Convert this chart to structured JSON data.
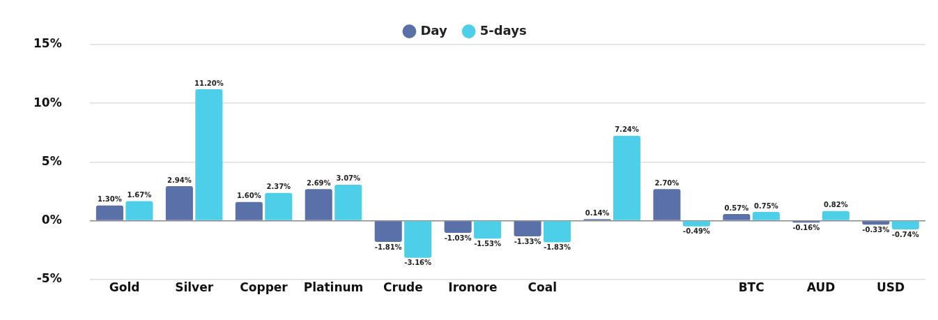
{
  "chart_data": {
    "type": "bar",
    "categories": [
      "Gold",
      "Silver",
      "Copper",
      "Platinum",
      "Crude",
      "Ironore",
      "Coal",
      null,
      null,
      "BTC",
      "AUD",
      "USD"
    ],
    "series": [
      {
        "name": "Day",
        "color": "#5a70a9",
        "values": [
          1.3,
          2.94,
          1.6,
          2.69,
          -1.81,
          -1.03,
          -1.33,
          0.14,
          2.7,
          0.57,
          -0.16,
          -0.33
        ],
        "value_labels": [
          "1.30%",
          "2.94%",
          "1.60%",
          "2.69%",
          "-1.81%",
          "-1.03%",
          "-1.33%",
          "0.14%",
          "2.70%",
          "0.57%",
          "-0.16%",
          "-0.33%"
        ]
      },
      {
        "name": "5-days",
        "color": "#4dcfe9",
        "values": [
          1.67,
          11.2,
          2.37,
          3.07,
          -3.16,
          -1.53,
          -1.83,
          7.24,
          -0.49,
          0.75,
          0.82,
          -0.74
        ],
        "value_labels": [
          "1.67%",
          "11.20%",
          "2.37%",
          "3.07%",
          "-3.16%",
          "-1.53%",
          "-1.83%",
          "7.24%",
          "-0.49%",
          "0.75%",
          "0.82%",
          "-0.74%"
        ]
      }
    ],
    "ylim": [
      -5,
      15
    ],
    "yticks": [
      {
        "value": -5,
        "label": "-5%"
      },
      {
        "value": 0,
        "label": "0%"
      },
      {
        "value": 5,
        "label": "5%"
      },
      {
        "value": 10,
        "label": "10%"
      },
      {
        "value": 15,
        "label": "15%"
      }
    ],
    "grid": "y",
    "legend": "top"
  }
}
